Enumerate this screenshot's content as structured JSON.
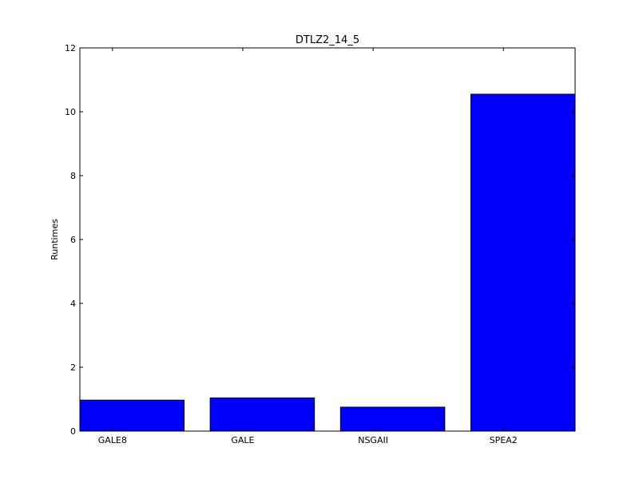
{
  "chart_data": {
    "type": "bar",
    "title": "DTLZ2_14_5",
    "xlabel": "",
    "ylabel": "Runtimes",
    "categories": [
      "GALE8",
      "GALE",
      "NSGAII",
      "SPEA2"
    ],
    "values": [
      0.97,
      1.04,
      0.75,
      10.55
    ],
    "ylim": [
      0,
      12
    ],
    "yticks": [
      0,
      2,
      4,
      6,
      8,
      10,
      12
    ],
    "grid": false,
    "bar_color": "#0000ff",
    "edge_color": "#000000"
  }
}
